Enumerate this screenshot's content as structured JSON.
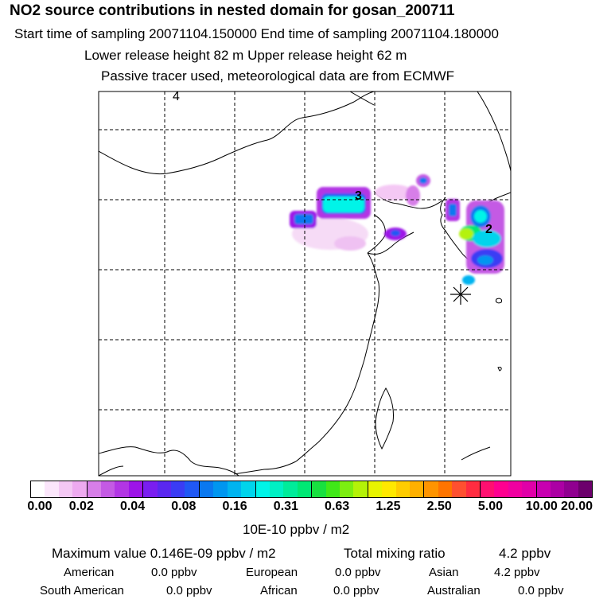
{
  "header": {
    "title": "NO2 source contributions in nested domain for gosan_200711",
    "line1": "Start time of sampling 20071104.150000     End time of sampling 20071104.180000",
    "line2": "Lower release height   82 m          Upper release height   62 m",
    "line3": "Passive tracer used, meteorological data are from ECMWF"
  },
  "map": {
    "markers": [
      {
        "label": "4"
      },
      {
        "label": "3"
      },
      {
        "label": "2"
      }
    ]
  },
  "colorbar": {
    "colors": [
      "#ffffff",
      "#fbe6fb",
      "#f4c8f4",
      "#eeaaf0",
      "#d77ee8",
      "#c45ae4",
      "#b236e4",
      "#9d14e8",
      "#7a1ef0",
      "#5a28f0",
      "#3a3cf4",
      "#2058f4",
      "#0a78f0",
      "#0096f0",
      "#00b4f0",
      "#00d4ec",
      "#00f4e8",
      "#00f0c4",
      "#00ec9a",
      "#00e874",
      "#18e040",
      "#40e818",
      "#7cee10",
      "#b4f208",
      "#e8f400",
      "#ffe800",
      "#ffcc00",
      "#ffb000",
      "#ff9400",
      "#ff7400",
      "#ff5030",
      "#ff2c40",
      "#ff1070",
      "#ff0090",
      "#f000a0",
      "#e000a8",
      "#c800b0",
      "#ac00a4",
      "#900090",
      "#6c006c"
    ],
    "tick_labels": [
      "0.00",
      "0.02",
      "0.04",
      "0.08",
      "0.16",
      "0.31",
      "0.63",
      "1.25",
      "2.50",
      "5.00",
      "10.00",
      "20.00"
    ],
    "units": "10E-10 ppbv / m2"
  },
  "stats": {
    "maximum": "Maximum value  0.146E-09 ppbv / m2",
    "total_label": "Total mixing ratio",
    "total_value": "4.2 ppbv",
    "american_label": "American",
    "american_value": "0.0 ppbv",
    "european_label": "European",
    "european_value": "0.0 ppbv",
    "asian_label": "Asian",
    "asian_value": "4.2 ppbv",
    "south_american_label": "South American",
    "south_american_value": "0.0 ppbv",
    "african_label": "African",
    "african_value": "0.0 ppbv",
    "australian_label": "Australian",
    "australian_value": "0.0 ppbv"
  }
}
